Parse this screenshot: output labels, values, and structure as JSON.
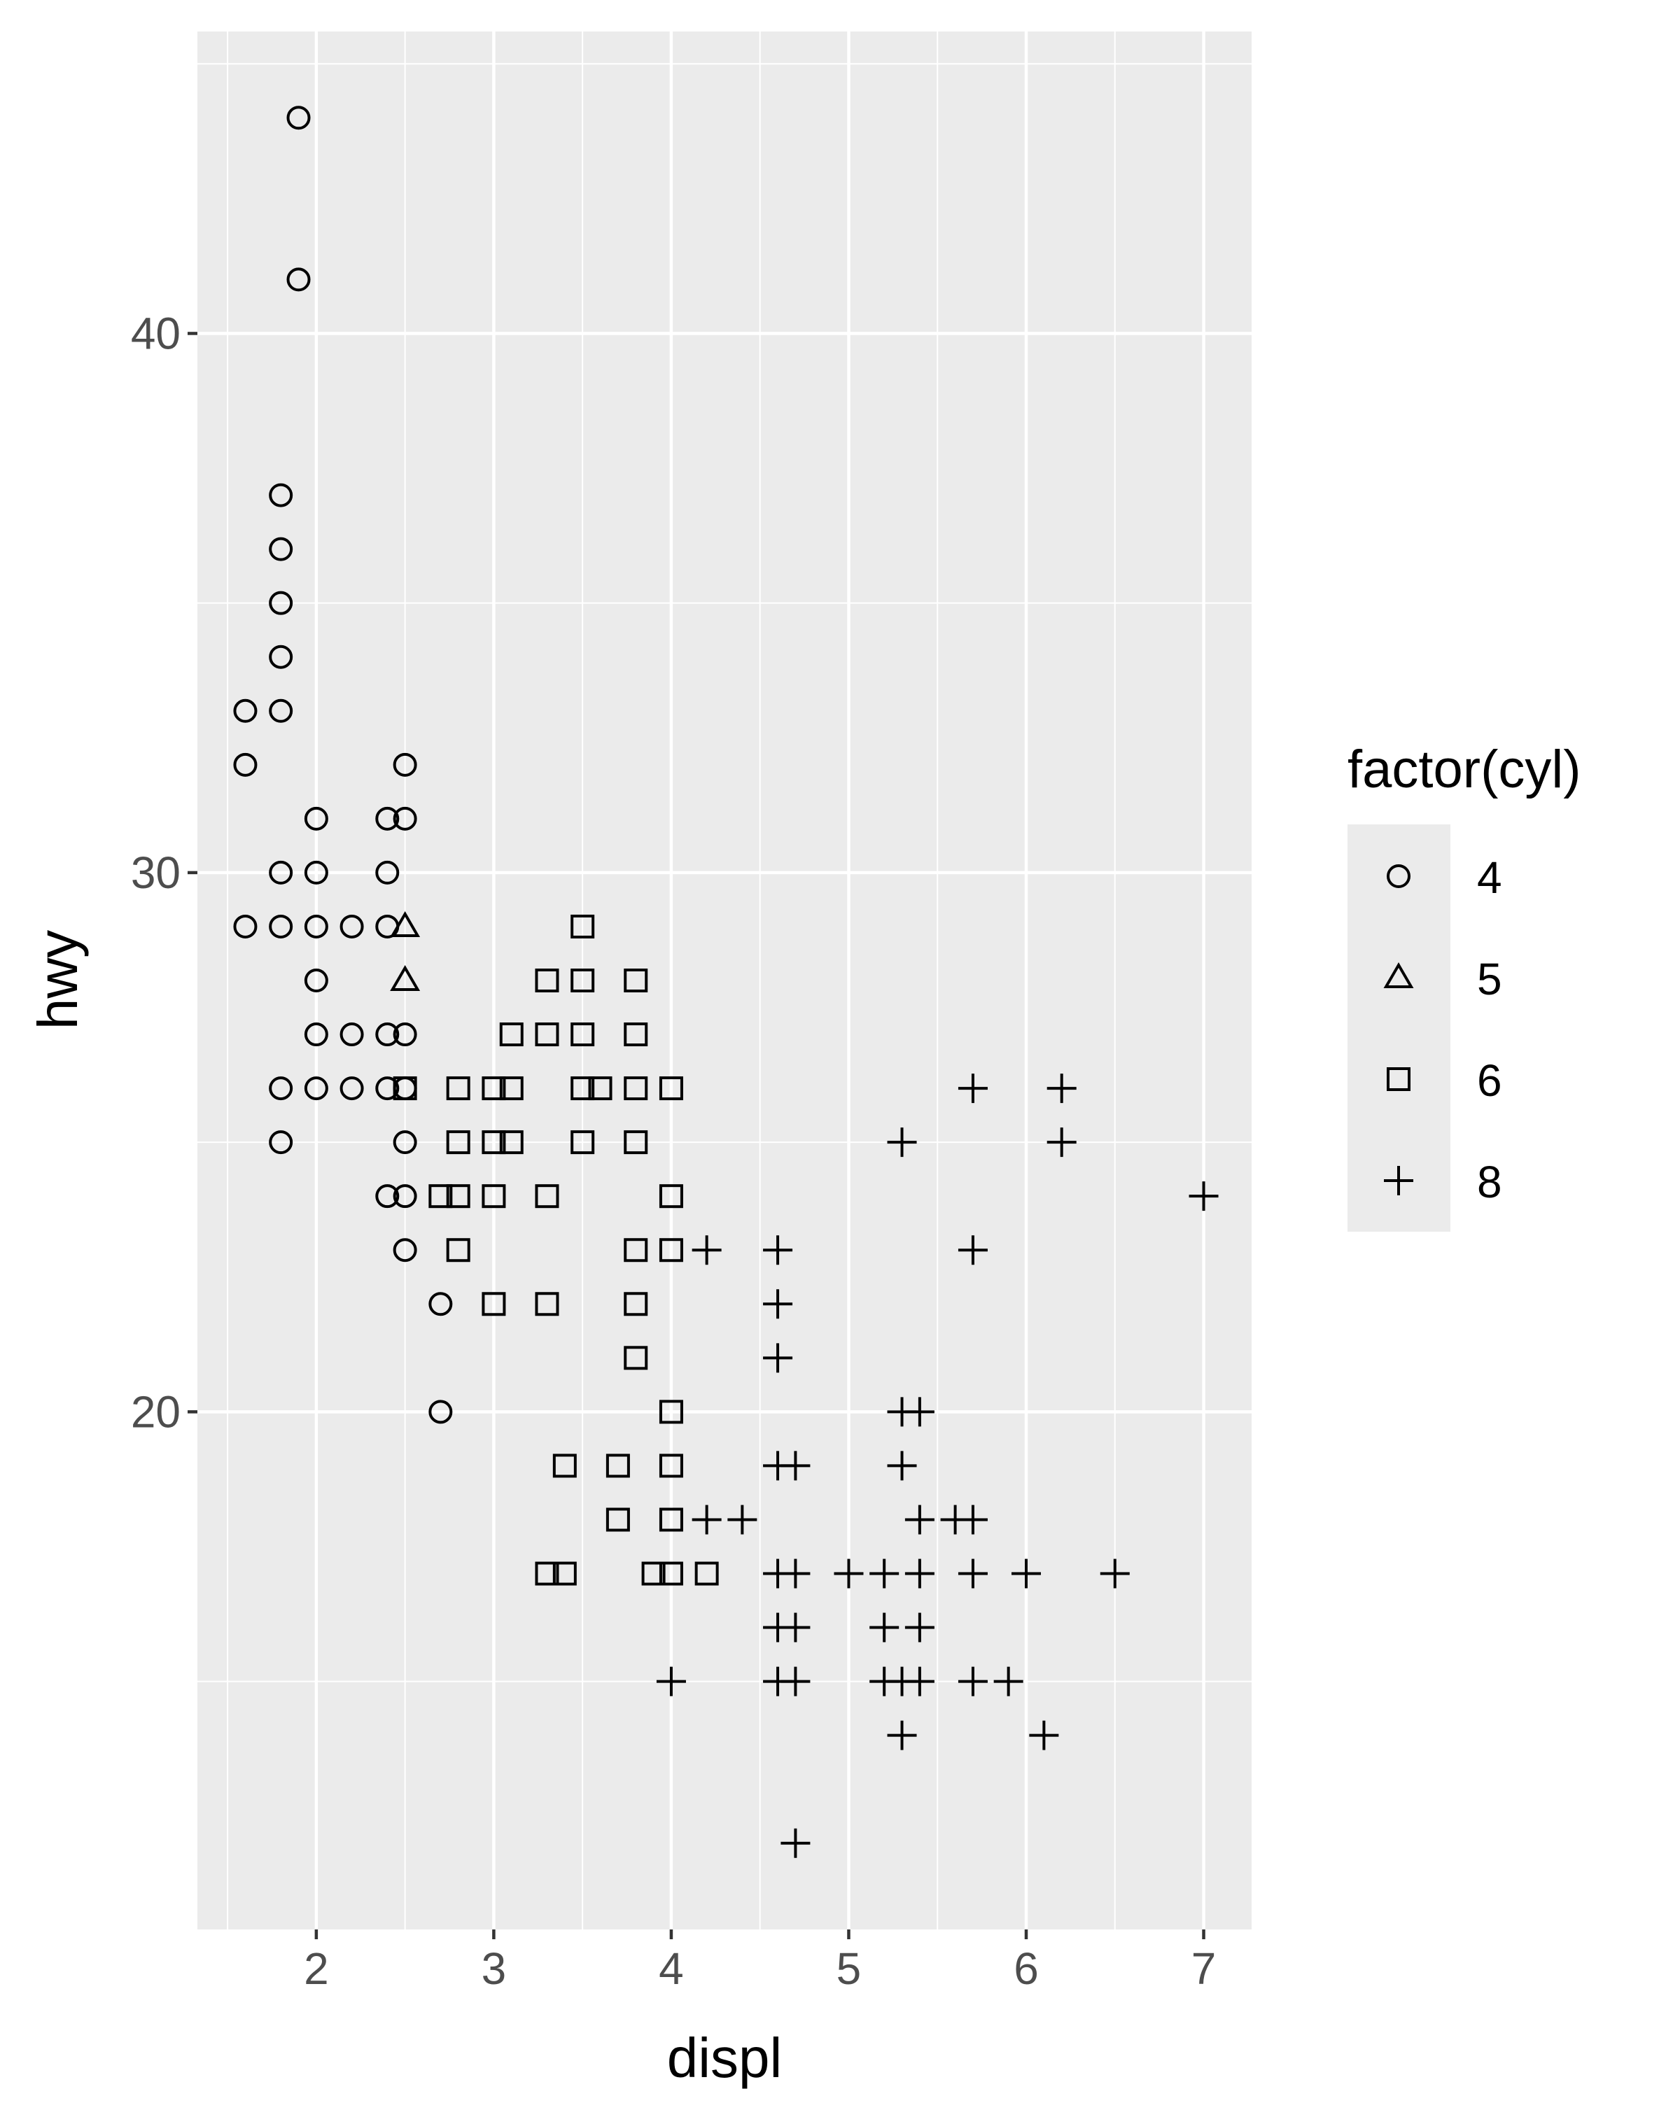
{
  "chart_data": {
    "type": "scatter",
    "x_label": "displ",
    "y_label": "hwy",
    "xlim": [
      1.33,
      7.27
    ],
    "ylim": [
      10.4,
      45.6
    ],
    "x_ticks": [
      2,
      3,
      4,
      5,
      6,
      7
    ],
    "y_ticks": [
      20,
      30,
      40
    ],
    "grid": true,
    "legend": {
      "title": "factor(cyl)",
      "position": "right",
      "entries": [
        {
          "label": "4",
          "shape": "circle"
        },
        {
          "label": "5",
          "shape": "triangle"
        },
        {
          "label": "6",
          "shape": "square"
        },
        {
          "label": "8",
          "shape": "plus"
        }
      ]
    },
    "series": [
      {
        "name": "4",
        "shape": "circle",
        "points": [
          [
            1.9,
            44
          ],
          [
            1.9,
            41
          ],
          [
            1.8,
            37
          ],
          [
            1.8,
            36
          ],
          [
            1.8,
            35
          ],
          [
            1.8,
            34
          ],
          [
            1.8,
            33
          ],
          [
            1.6,
            33
          ],
          [
            1.6,
            32
          ],
          [
            2.5,
            32
          ],
          [
            2.0,
            31
          ],
          [
            2.4,
            31
          ],
          [
            2.5,
            31
          ],
          [
            1.8,
            30
          ],
          [
            2.0,
            30
          ],
          [
            2.4,
            30
          ],
          [
            1.6,
            29
          ],
          [
            1.8,
            29
          ],
          [
            2.0,
            29
          ],
          [
            2.2,
            29
          ],
          [
            2.4,
            29
          ],
          [
            2.0,
            28
          ],
          [
            2.0,
            27
          ],
          [
            2.2,
            27
          ],
          [
            2.4,
            27
          ],
          [
            2.5,
            27
          ],
          [
            1.8,
            26
          ],
          [
            2.0,
            26
          ],
          [
            2.2,
            26
          ],
          [
            2.4,
            26
          ],
          [
            2.5,
            26
          ],
          [
            1.8,
            25
          ],
          [
            2.5,
            25
          ],
          [
            2.4,
            24
          ],
          [
            2.5,
            24
          ],
          [
            2.5,
            23
          ],
          [
            2.7,
            22
          ],
          [
            2.7,
            20
          ]
        ]
      },
      {
        "name": "5",
        "shape": "triangle",
        "points": [
          [
            2.5,
            29
          ],
          [
            2.5,
            28
          ]
        ]
      },
      {
        "name": "6",
        "shape": "square",
        "points": [
          [
            3.5,
            29
          ],
          [
            3.3,
            28
          ],
          [
            3.5,
            28
          ],
          [
            3.8,
            28
          ],
          [
            3.1,
            27
          ],
          [
            3.3,
            27
          ],
          [
            3.5,
            27
          ],
          [
            3.8,
            27
          ],
          [
            2.5,
            26
          ],
          [
            2.8,
            26
          ],
          [
            3.0,
            26
          ],
          [
            3.1,
            26
          ],
          [
            3.5,
            26
          ],
          [
            3.6,
            26
          ],
          [
            3.8,
            26
          ],
          [
            4.0,
            26
          ],
          [
            2.8,
            25
          ],
          [
            3.0,
            25
          ],
          [
            3.1,
            25
          ],
          [
            3.5,
            25
          ],
          [
            3.8,
            25
          ],
          [
            2.7,
            24
          ],
          [
            2.8,
            24
          ],
          [
            3.0,
            24
          ],
          [
            3.3,
            24
          ],
          [
            4.0,
            24
          ],
          [
            2.8,
            23
          ],
          [
            3.8,
            23
          ],
          [
            4.0,
            23
          ],
          [
            3.0,
            22
          ],
          [
            3.3,
            22
          ],
          [
            3.8,
            22
          ],
          [
            3.8,
            21
          ],
          [
            4.0,
            20
          ],
          [
            3.4,
            19
          ],
          [
            3.7,
            19
          ],
          [
            4.0,
            19
          ],
          [
            3.7,
            18
          ],
          [
            4.0,
            18
          ],
          [
            3.3,
            17
          ],
          [
            3.4,
            17
          ],
          [
            3.9,
            17
          ],
          [
            4.0,
            17
          ],
          [
            4.2,
            17
          ]
        ]
      },
      {
        "name": "8",
        "shape": "plus",
        "points": [
          [
            5.7,
            26
          ],
          [
            6.2,
            26
          ],
          [
            5.3,
            25
          ],
          [
            6.2,
            25
          ],
          [
            7.0,
            24
          ],
          [
            4.2,
            23
          ],
          [
            4.6,
            23
          ],
          [
            5.7,
            23
          ],
          [
            4.6,
            22
          ],
          [
            4.6,
            21
          ],
          [
            5.3,
            20
          ],
          [
            5.4,
            20
          ],
          [
            4.6,
            19
          ],
          [
            4.7,
            19
          ],
          [
            5.3,
            19
          ],
          [
            4.2,
            18
          ],
          [
            4.4,
            18
          ],
          [
            5.4,
            18
          ],
          [
            5.6,
            18
          ],
          [
            5.7,
            18
          ],
          [
            4.6,
            17
          ],
          [
            4.7,
            17
          ],
          [
            5.0,
            17
          ],
          [
            5.2,
            17
          ],
          [
            5.4,
            17
          ],
          [
            5.7,
            17
          ],
          [
            6.0,
            17
          ],
          [
            6.5,
            17
          ],
          [
            4.6,
            16
          ],
          [
            4.7,
            16
          ],
          [
            5.2,
            16
          ],
          [
            5.4,
            16
          ],
          [
            4.0,
            15
          ],
          [
            4.6,
            15
          ],
          [
            4.7,
            15
          ],
          [
            5.2,
            15
          ],
          [
            5.3,
            15
          ],
          [
            5.4,
            15
          ],
          [
            5.7,
            15
          ],
          [
            5.9,
            15
          ],
          [
            5.3,
            14
          ],
          [
            6.1,
            14
          ],
          [
            4.7,
            12
          ]
        ]
      }
    ]
  }
}
